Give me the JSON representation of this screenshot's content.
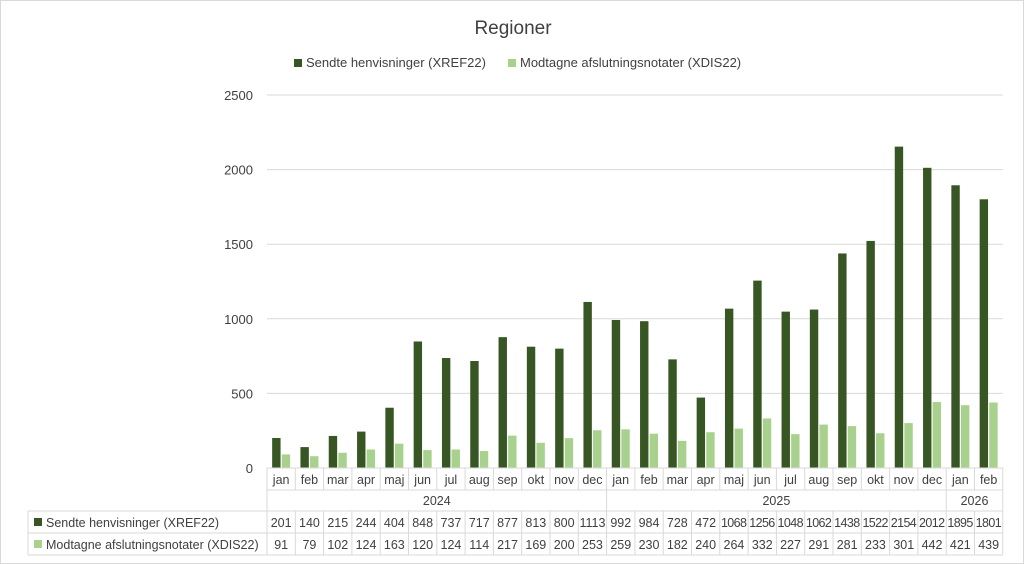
{
  "chart_data": {
    "type": "bar",
    "title": "Regioner",
    "legend_position": "top",
    "grid": true,
    "ylim": [
      0,
      2500
    ],
    "yticks": [
      0,
      500,
      1000,
      1500,
      2000,
      2500
    ],
    "categories": [
      "jan",
      "feb",
      "mar",
      "apr",
      "maj",
      "jun",
      "jul",
      "aug",
      "sep",
      "okt",
      "nov",
      "dec",
      "jan",
      "feb",
      "mar",
      "apr",
      "maj",
      "jun",
      "jul",
      "aug",
      "sep",
      "okt",
      "nov",
      "dec",
      "jan",
      "feb"
    ],
    "category_groups": [
      {
        "label": "2024",
        "count": 12
      },
      {
        "label": "2025",
        "count": 12
      },
      {
        "label": "2026",
        "count": 2
      }
    ],
    "series": [
      {
        "name": "Sendte henvisninger (XREF22)",
        "color": "#375623",
        "values": [
          201,
          140,
          215,
          244,
          404,
          848,
          737,
          717,
          877,
          813,
          800,
          1113,
          992,
          984,
          728,
          472,
          1068,
          1256,
          1048,
          1062,
          1438,
          1522,
          2154,
          2012,
          1895,
          1801
        ]
      },
      {
        "name": "Modtagne afslutningsnotater (XDIS22)",
        "color": "#a9d18e",
        "values": [
          91,
          79,
          102,
          124,
          163,
          120,
          124,
          114,
          217,
          169,
          200,
          253,
          259,
          230,
          182,
          240,
          264,
          332,
          227,
          291,
          281,
          233,
          301,
          442,
          421,
          439
        ]
      }
    ],
    "data_table": true
  }
}
